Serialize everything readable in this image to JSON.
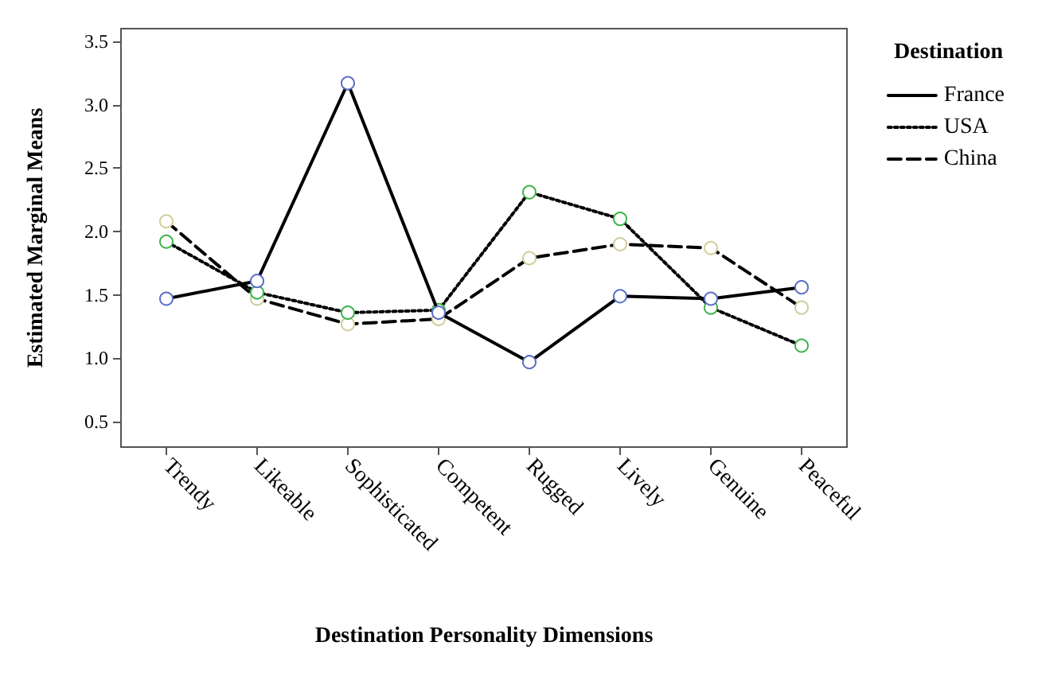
{
  "chart_data": {
    "type": "line",
    "xlabel": "Destination Personality Dimensions",
    "ylabel": "Estimated Marginal Means",
    "legend_title": "Destination",
    "categories": [
      "Trendy",
      "Likeable",
      "Sophisticated",
      "Competent",
      "Rugged",
      "Lively",
      "Genuine",
      "Peaceful"
    ],
    "series": [
      {
        "name": "France",
        "color": "#000000",
        "line_style": "solid",
        "colors": [
          "#5a6ec8",
          "#5a6ec8",
          "#5a6ec8",
          "#5a6ec8",
          "#5a6ec8",
          "#5a6ec8",
          "#5a6ec8",
          "#5a6ec8"
        ],
        "values": [
          1.47,
          1.61,
          3.17,
          1.36,
          0.97,
          1.49,
          1.47,
          1.56
        ]
      },
      {
        "name": "USA",
        "color": "#000000",
        "line_style": "dotted",
        "colors": [
          "#3cb44a",
          "#3cb44a",
          "#3cb44a",
          "#3cb44a",
          "#3cb44a",
          "#3cb44a",
          "#3cb44a",
          "#3cb44a"
        ],
        "values": [
          1.92,
          1.52,
          1.36,
          1.38,
          2.31,
          2.1,
          1.4,
          1.1
        ]
      },
      {
        "name": "China",
        "color": "#000000",
        "line_style": "dashed",
        "colors": [
          "#d2cc9a",
          "#d2cc9a",
          "#d2cc9a",
          "#d2cc9a",
          "#d2cc9a",
          "#d2cc9a",
          "#d2cc9a",
          "#d2cc9a"
        ],
        "values": [
          2.08,
          1.47,
          1.27,
          1.31,
          1.79,
          1.9,
          1.87,
          1.4
        ]
      }
    ],
    "ylim": [
      0.3,
      3.6
    ],
    "yticks": [
      {
        "value": 0.5,
        "label": "0.5"
      },
      {
        "value": 1,
        "label": "1.0"
      },
      {
        "value": 1.5,
        "label": "1.5"
      },
      {
        "value": 2,
        "label": "2.0"
      },
      {
        "value": 2.5,
        "label": "2.5"
      },
      {
        "value": 3,
        "label": "3.0"
      },
      {
        "value": 3.5,
        "label": "3.5"
      }
    ],
    "marker": "circle",
    "grid": false,
    "legend": "right"
  }
}
